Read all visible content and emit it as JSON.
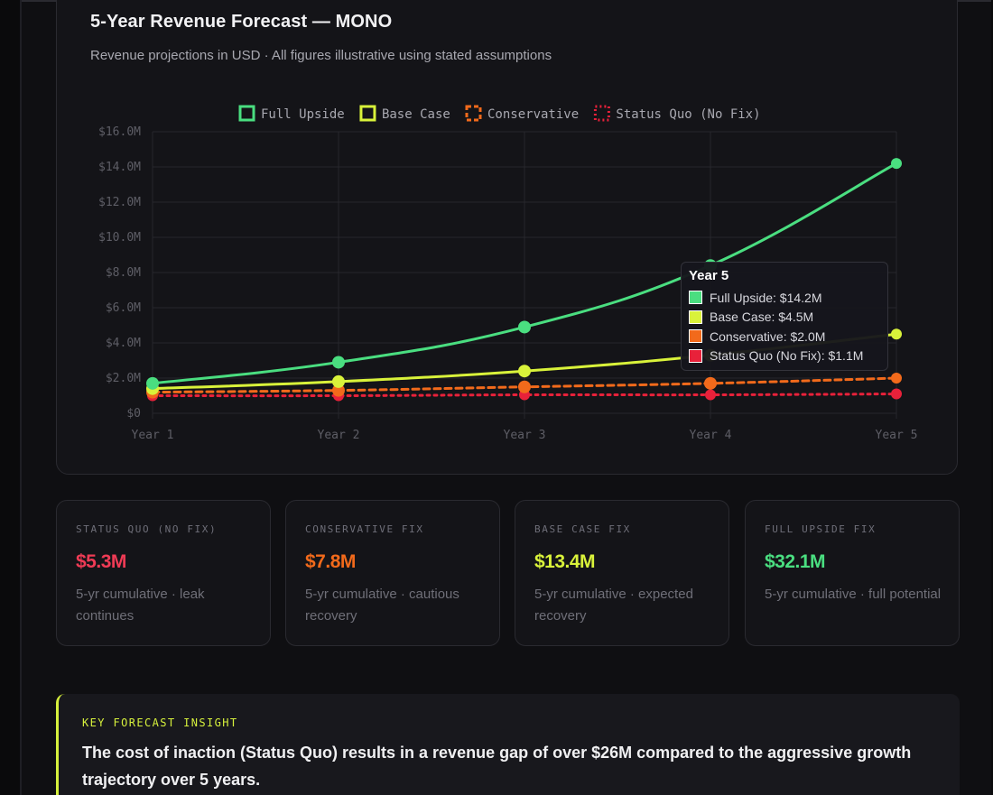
{
  "chart_card": {
    "title": "5-Year Revenue Forecast — MONO",
    "subtitle": "Revenue projections in USD · All figures illustrative using stated assumptions"
  },
  "chart_data": {
    "type": "line",
    "categories": [
      "Year 1",
      "Year 2",
      "Year 3",
      "Year 4",
      "Year 5"
    ],
    "y_tick_labels": [
      "$0",
      "$2.0M",
      "$4.0M",
      "$6.0M",
      "$8.0M",
      "$10.0M",
      "$12.0M",
      "$14.0M",
      "$16.0M"
    ],
    "ylim": [
      0,
      16
    ],
    "y_unit": "USD millions",
    "grid": true,
    "legend_position": "top-center",
    "series": [
      {
        "name": "Full Upside",
        "values": [
          1.7,
          2.9,
          4.9,
          8.4,
          14.2
        ],
        "color": "#4ade80",
        "dash": "solid"
      },
      {
        "name": "Base Case",
        "values": [
          1.4,
          1.8,
          2.4,
          3.3,
          4.5
        ],
        "color": "#d9f23a",
        "dash": "solid"
      },
      {
        "name": "Conservative",
        "values": [
          1.2,
          1.3,
          1.5,
          1.7,
          2.0
        ],
        "color": "#f26a1b",
        "dash": "dashed"
      },
      {
        "name": "Status Quo (No Fix)",
        "values": [
          1.0,
          1.0,
          1.05,
          1.05,
          1.1
        ],
        "color": "#e8213a",
        "dash": "dotted"
      }
    ]
  },
  "tooltip": {
    "title": "Year 5",
    "rows": [
      {
        "label": "Full Upside: $14.2M",
        "color": "#4ade80"
      },
      {
        "label": "Base Case: $4.5M",
        "color": "#d9f23a"
      },
      {
        "label": "Conservative: $2.0M",
        "color": "#f26a1b"
      },
      {
        "label": "Status Quo (No Fix): $1.1M",
        "color": "#e8213a"
      }
    ]
  },
  "kpis": [
    {
      "label": "STATUS QUO (NO FIX)",
      "value": "$5.3M",
      "desc": "5-yr cumulative · leak continues",
      "color": "#ef3b55"
    },
    {
      "label": "CONSERVATIVE FIX",
      "value": "$7.8M",
      "desc": "5-yr cumulative · cautious recovery",
      "color": "#f26a1b"
    },
    {
      "label": "BASE CASE FIX",
      "value": "$13.4M",
      "desc": "5-yr cumulative · expected recovery",
      "color": "#d9f23a"
    },
    {
      "label": "FULL UPSIDE FIX",
      "value": "$32.1M",
      "desc": "5-yr cumulative · full potential",
      "color": "#4ade80"
    }
  ],
  "insight": {
    "label": "KEY FORECAST INSIGHT",
    "text": "The cost of inaction (Status Quo) results in a revenue gap of over $26M compared to the aggressive growth trajectory over 5 years.",
    "accent": "#d6f03c"
  }
}
